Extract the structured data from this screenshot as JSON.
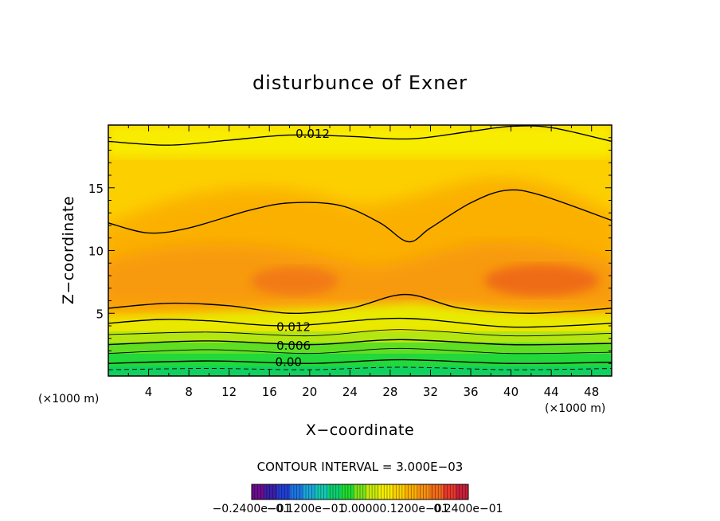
{
  "chart_data": {
    "type": "heatmap",
    "title": "disturbunce of Exner",
    "xlabel": "X−coordinate",
    "ylabel": "Z−coordinate",
    "x_unit": "(×1000 m)",
    "y_unit": "(×1000 m)",
    "xlim": [
      0,
      50
    ],
    "ylim": [
      0,
      20
    ],
    "x_ticks": [
      4,
      8,
      12,
      16,
      20,
      24,
      28,
      32,
      36,
      40,
      44,
      48
    ],
    "y_ticks": [
      5,
      10,
      15
    ],
    "contour_interval_text": "CONTOUR INTERVAL = 3.000E−03",
    "contour_labels": [
      {
        "text": "0.012",
        "x": 20.3,
        "z": 19.3
      },
      {
        "text": "0.012",
        "x": 18.4,
        "z": 3.9
      },
      {
        "text": "0.006",
        "x": 18.4,
        "z": 2.4
      },
      {
        "text": "0.00",
        "x": 17.9,
        "z": 1.1
      }
    ],
    "contours": [
      {
        "level": 0.003,
        "dashed": true,
        "points": [
          [
            0,
            0.5
          ],
          [
            10,
            0.6
          ],
          [
            20,
            0.5
          ],
          [
            29,
            0.7
          ],
          [
            40,
            0.5
          ],
          [
            50,
            0.6
          ]
        ]
      },
      {
        "level": 0.0,
        "dashed": false,
        "points": [
          [
            0,
            1.0
          ],
          [
            10,
            1.2
          ],
          [
            20,
            1.0
          ],
          [
            29,
            1.3
          ],
          [
            40,
            1.0
          ],
          [
            50,
            1.1
          ]
        ]
      },
      {
        "level": 0.003,
        "dashed": false,
        "points": [
          [
            0,
            1.8
          ],
          [
            10,
            2.1
          ],
          [
            20,
            1.8
          ],
          [
            29,
            2.2
          ],
          [
            40,
            1.8
          ],
          [
            50,
            1.9
          ]
        ]
      },
      {
        "level": 0.006,
        "dashed": false,
        "points": [
          [
            0,
            2.5
          ],
          [
            10,
            2.8
          ],
          [
            20,
            2.5
          ],
          [
            29,
            2.9
          ],
          [
            40,
            2.5
          ],
          [
            50,
            2.6
          ]
        ]
      },
      {
        "level": 0.009,
        "dashed": false,
        "points": [
          [
            0,
            3.3
          ],
          [
            10,
            3.5
          ],
          [
            20,
            3.2
          ],
          [
            29,
            3.7
          ],
          [
            40,
            3.2
          ],
          [
            50,
            3.4
          ]
        ]
      },
      {
        "level": 0.012,
        "dashed": false,
        "points": [
          [
            0,
            4.2
          ],
          [
            5,
            4.5
          ],
          [
            10,
            4.4
          ],
          [
            18,
            4.0
          ],
          [
            29,
            4.6
          ],
          [
            40,
            3.9
          ],
          [
            50,
            4.2
          ]
        ]
      },
      {
        "level": 0.012,
        "dashed": false,
        "points": [
          [
            0,
            5.4
          ],
          [
            6,
            5.8
          ],
          [
            12,
            5.6
          ],
          [
            18,
            5.0
          ],
          [
            24,
            5.4
          ],
          [
            29.5,
            6.5
          ],
          [
            35,
            5.4
          ],
          [
            42,
            5.0
          ],
          [
            50,
            5.4
          ]
        ]
      },
      {
        "level": 0.012,
        "dashed": false,
        "points": [
          [
            0,
            12.2
          ],
          [
            4,
            11.4
          ],
          [
            8,
            11.8
          ],
          [
            14,
            13.2
          ],
          [
            18,
            13.8
          ],
          [
            23,
            13.6
          ],
          [
            27,
            12.2
          ],
          [
            29.8,
            10.7
          ],
          [
            32,
            11.8
          ],
          [
            36,
            13.8
          ],
          [
            39.5,
            14.8
          ],
          [
            43,
            14.4
          ],
          [
            50,
            12.4
          ]
        ]
      },
      {
        "level": 0.012,
        "dashed": false,
        "points": [
          [
            0,
            18.7
          ],
          [
            6,
            18.4
          ],
          [
            12,
            18.8
          ],
          [
            18,
            19.2
          ],
          [
            24,
            19.1
          ],
          [
            30,
            18.9
          ],
          [
            36,
            19.5
          ],
          [
            40,
            19.9
          ],
          [
            44,
            19.8
          ],
          [
            50,
            18.7
          ]
        ]
      }
    ],
    "colorbar": {
      "labels": [
        "−0.2400e−01",
        "−0.1200e−01",
        "0.0000",
        "0.1200e−01",
        "0.2400e−01"
      ],
      "colors": [
        "#6a0d8c",
        "#3a1fa8",
        "#1f3ed2",
        "#1c74e2",
        "#1aa6d8",
        "#12c8b0",
        "#0ccf70",
        "#1fdc32",
        "#7ae21a",
        "#c8ea0a",
        "#f5ec00",
        "#fcd000",
        "#fbb000",
        "#f89010",
        "#f06a18",
        "#e6382a",
        "#c8203a"
      ]
    }
  }
}
